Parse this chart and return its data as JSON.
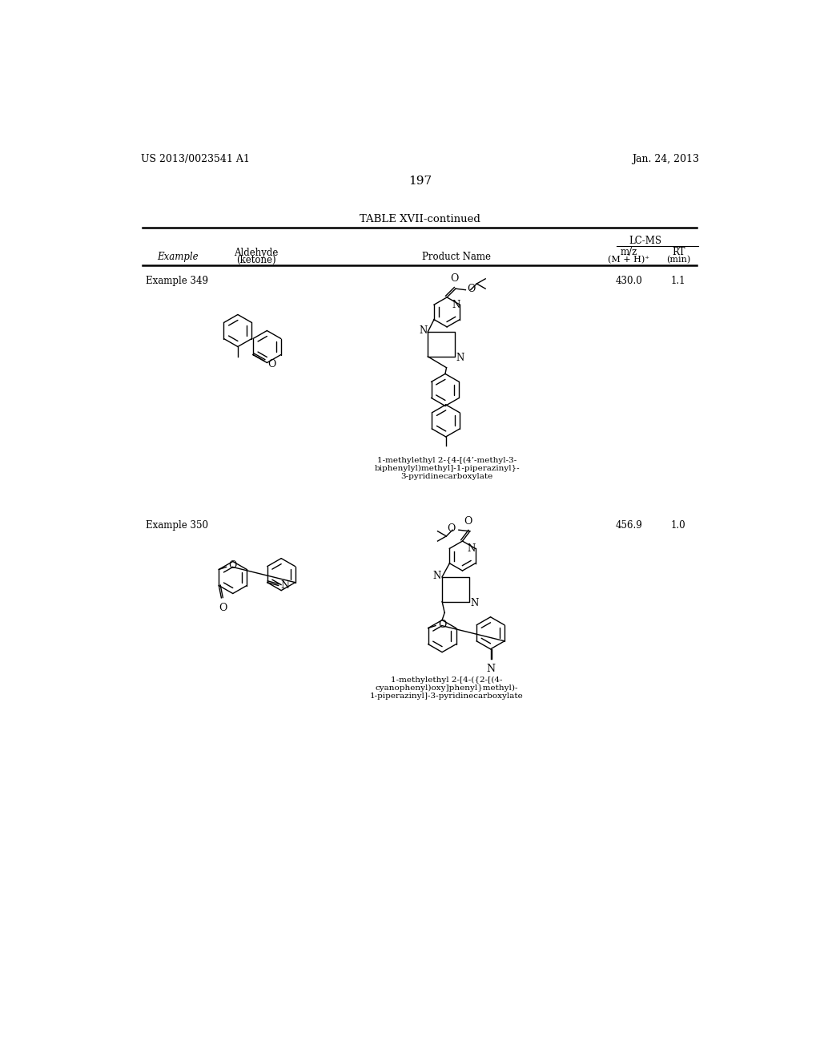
{
  "page_number": "197",
  "patent_number": "US 2013/0023541 A1",
  "patent_date": "Jan. 24, 2013",
  "table_title": "TABLE XVII-continued",
  "header_lcms": "LC-MS",
  "header_mz": "m/z",
  "header_mz2": "(M + H)⁺",
  "header_rt": "RT",
  "header_rt2": "(min)",
  "example349_label": "Example 349",
  "example349_mz": "430.0",
  "example349_rt": "1.1",
  "example349_name_line1": "1-methylethyl 2-{4-[(4’-methyl-3-",
  "example349_name_line2": "biphenylyl)methyl]-1-piperazinyl}-",
  "example349_name_line3": "3-pyridinecarboxylate",
  "example350_label": "Example 350",
  "example350_mz": "456.9",
  "example350_rt": "1.0",
  "example350_name_line1": "1-methylethyl 2-[4-({2-[(4-",
  "example350_name_line2": "cyanophenyl)oxy]phenyl}methyl)-",
  "example350_name_line3": "1-piperazinyl]-3-pyridinecarboxylate",
  "bg_color": "#ffffff",
  "text_color": "#000000"
}
